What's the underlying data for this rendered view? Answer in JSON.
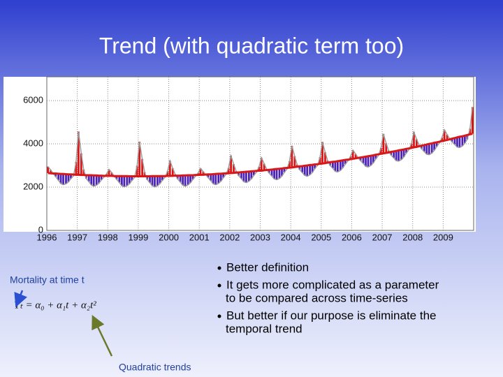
{
  "title": "Trend (with quadratic term too)",
  "left_label": "Mortality at time t",
  "formula": "Yₜ = α₀ + α₁t + α₂t²",
  "arrow_label": "Quadratic trends",
  "bullets": [
    [
      "Better definition"
    ],
    [
      "It gets more complicated as a parameter",
      "to be compared across time-series"
    ],
    [
      "But better if our purpose is eliminate the",
      "temporal trend"
    ]
  ],
  "chart_data": {
    "type": "residual-bar-line",
    "xlim": [
      1996,
      2010
    ],
    "ylim": [
      0,
      7100
    ],
    "xticks": [
      1996,
      1997,
      1998,
      1999,
      2000,
      2001,
      2002,
      2003,
      2004,
      2005,
      2006,
      2007,
      2008,
      2009
    ],
    "yticks": [
      0,
      2000,
      4000,
      6000
    ],
    "grid": true,
    "bar_colors": [
      "#e01010",
      "#4a1fb8"
    ],
    "x": [
      1996.04,
      1996.13,
      1996.21,
      1996.29,
      1996.38,
      1996.46,
      1996.54,
      1996.63,
      1996.71,
      1996.79,
      1996.88,
      1996.96,
      1997.04,
      1997.13,
      1997.21,
      1997.29,
      1997.38,
      1997.46,
      1997.54,
      1997.63,
      1997.71,
      1997.79,
      1997.88,
      1997.96,
      1998.04,
      1998.13,
      1998.21,
      1998.29,
      1998.38,
      1998.46,
      1998.54,
      1998.63,
      1998.71,
      1998.79,
      1998.88,
      1998.96,
      1999.04,
      1999.13,
      1999.21,
      1999.29,
      1999.38,
      1999.46,
      1999.54,
      1999.63,
      1999.71,
      1999.79,
      1999.88,
      1999.96,
      2000.04,
      2000.13,
      2000.21,
      2000.29,
      2000.38,
      2000.46,
      2000.54,
      2000.63,
      2000.71,
      2000.79,
      2000.88,
      2000.96,
      2001.04,
      2001.13,
      2001.21,
      2001.29,
      2001.38,
      2001.46,
      2001.54,
      2001.63,
      2001.71,
      2001.79,
      2001.88,
      2001.96,
      2002.04,
      2002.13,
      2002.21,
      2002.29,
      2002.38,
      2002.46,
      2002.54,
      2002.63,
      2002.71,
      2002.79,
      2002.88,
      2002.96,
      2003.04,
      2003.13,
      2003.21,
      2003.29,
      2003.38,
      2003.46,
      2003.54,
      2003.63,
      2003.71,
      2003.79,
      2003.88,
      2003.96,
      2004.04,
      2004.13,
      2004.21,
      2004.29,
      2004.38,
      2004.46,
      2004.54,
      2004.63,
      2004.71,
      2004.79,
      2004.88,
      2004.96,
      2005.04,
      2005.13,
      2005.21,
      2005.29,
      2005.38,
      2005.46,
      2005.54,
      2005.63,
      2005.71,
      2005.79,
      2005.88,
      2005.96,
      2006.04,
      2006.13,
      2006.21,
      2006.29,
      2006.38,
      2006.46,
      2006.54,
      2006.63,
      2006.71,
      2006.79,
      2006.88,
      2006.96,
      2007.04,
      2007.13,
      2007.21,
      2007.29,
      2007.38,
      2007.46,
      2007.54,
      2007.63,
      2007.71,
      2007.79,
      2007.88,
      2007.96,
      2008.04,
      2008.13,
      2008.21,
      2008.29,
      2008.38,
      2008.46,
      2008.54,
      2008.63,
      2008.71,
      2008.79,
      2008.88,
      2008.96,
      2009.04,
      2009.13,
      2009.21,
      2009.29,
      2009.38,
      2009.46,
      2009.54,
      2009.63,
      2009.71,
      2009.79,
      2009.88,
      2009.96
    ],
    "series": [
      {
        "color": "#9a9a9a",
        "values": [
          2950,
          2790,
          2630,
          2480,
          2320,
          2160,
          2110,
          2150,
          2240,
          2390,
          2530,
          3170,
          4570,
          3560,
          2810,
          2400,
          2250,
          2100,
          2040,
          2090,
          2180,
          2330,
          2470,
          2610,
          2820,
          2670,
          2510,
          2360,
          2210,
          2060,
          2010,
          2060,
          2150,
          2300,
          2450,
          2980,
          4100,
          3300,
          2690,
          2350,
          2200,
          2060,
          2010,
          2060,
          2160,
          2310,
          2460,
          2730,
          3220,
          2870,
          2590,
          2380,
          2230,
          2090,
          2040,
          2100,
          2200,
          2350,
          2510,
          2650,
          2870,
          2720,
          2580,
          2440,
          2290,
          2150,
          2110,
          2170,
          2270,
          2430,
          2590,
          2880,
          3450,
          3060,
          2740,
          2530,
          2390,
          2250,
          2210,
          2270,
          2380,
          2540,
          2700,
          2940,
          3360,
          3080,
          2830,
          2650,
          2510,
          2380,
          2340,
          2400,
          2510,
          2680,
          2840,
          3200,
          3910,
          3430,
          3040,
          2810,
          2670,
          2540,
          2500,
          2570,
          2680,
          2850,
          3010,
          3380,
          4090,
          3610,
          3230,
          3000,
          2870,
          2730,
          2700,
          2770,
          2890,
          3060,
          3220,
          3410,
          3710,
          3530,
          3360,
          3220,
          3090,
          2960,
          2930,
          3000,
          3120,
          3300,
          3470,
          3810,
          4460,
          4030,
          3690,
          3480,
          3350,
          3220,
          3200,
          3270,
          3390,
          3570,
          3740,
          4020,
          4540,
          4210,
          3950,
          3770,
          3640,
          3520,
          3500,
          3570,
          3700,
          3870,
          4050,
          4280,
          4650,
          4430,
          4240,
          4090,
          3970,
          3850,
          3830,
          3900,
          4030,
          4210,
          4700,
          5700
        ]
      },
      {
        "color": "#d81818",
        "values": [
          2650,
          2640,
          2630,
          2630,
          2620,
          2610,
          2610,
          2600,
          2590,
          2590,
          2580,
          2570,
          2570,
          2560,
          2560,
          2550,
          2550,
          2550,
          2540,
          2540,
          2530,
          2530,
          2520,
          2520,
          2520,
          2520,
          2510,
          2510,
          2510,
          2510,
          2510,
          2510,
          2500,
          2500,
          2500,
          2500,
          2500,
          2500,
          2500,
          2500,
          2500,
          2510,
          2510,
          2510,
          2510,
          2510,
          2510,
          2520,
          2520,
          2520,
          2530,
          2530,
          2530,
          2540,
          2540,
          2550,
          2550,
          2550,
          2560,
          2560,
          2570,
          2570,
          2580,
          2590,
          2590,
          2600,
          2610,
          2620,
          2620,
          2630,
          2640,
          2640,
          2650,
          2660,
          2670,
          2680,
          2690,
          2700,
          2710,
          2720,
          2730,
          2740,
          2750,
          2760,
          2760,
          2780,
          2790,
          2800,
          2810,
          2830,
          2840,
          2850,
          2860,
          2880,
          2890,
          2900,
          2910,
          2930,
          2940,
          2960,
          2970,
          2990,
          3000,
          3020,
          3030,
          3050,
          3060,
          3080,
          3090,
          3110,
          3130,
          3150,
          3170,
          3180,
          3200,
          3220,
          3240,
          3260,
          3270,
          3290,
          3310,
          3330,
          3350,
          3370,
          3390,
          3410,
          3430,
          3450,
          3470,
          3500,
          3520,
          3540,
          3560,
          3580,
          3600,
          3630,
          3650,
          3670,
          3700,
          3720,
          3740,
          3770,
          3790,
          3810,
          3840,
          3860,
          3890,
          3920,
          3940,
          3970,
          4000,
          4020,
          4050,
          4070,
          4100,
          4130,
          4150,
          4180,
          4210,
          4240,
          4270,
          4300,
          4330,
          4350,
          4380,
          4410,
          4440,
          4470
        ]
      }
    ]
  }
}
